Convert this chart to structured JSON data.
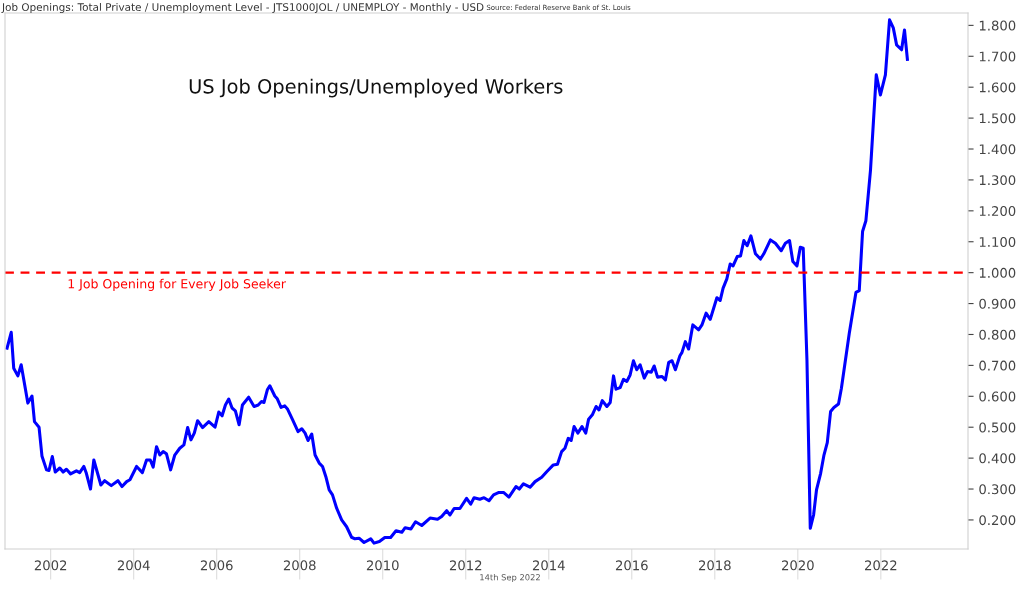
{
  "chart_data": {
    "type": "line",
    "title": "US Job Openings/Unemployed Workers",
    "subtitle": "Job Openings: Total Private / Unemployment Level - JTS1000JOL / UNEMPLOY - Monthly - USD",
    "annotations": [
      "Source: Federal Reserve Bank of St. Louis",
      "14th Sep 2022"
    ],
    "series": [
      {
        "color": "#0000ff",
        "x": [
          2000.95,
          2001.05,
          2001.11,
          2001.21,
          2001.29,
          2001.45,
          2001.55,
          2001.61,
          2001.72,
          2001.79,
          2001.9,
          2001.96,
          2002.04,
          2002.11,
          2002.22,
          2002.3,
          2002.38,
          2002.48,
          2002.62,
          2002.7,
          2002.8,
          2002.86,
          2002.96,
          2003.04,
          2003.21,
          2003.3,
          2003.46,
          2003.62,
          2003.72,
          2003.83,
          2003.91,
          2004.07,
          2004.21,
          2004.31,
          2004.4,
          2004.47,
          2004.55,
          2004.63,
          2004.71,
          2004.79,
          2004.89,
          2004.99,
          2005.11,
          2005.21,
          2005.3,
          2005.38,
          2005.46,
          2005.54,
          2005.66,
          2005.81,
          2005.96,
          2006.05,
          2006.13,
          2006.21,
          2006.29,
          2006.37,
          2006.45,
          2006.54,
          2006.62,
          2006.77,
          2006.9,
          2007.0,
          2007.08,
          2007.14,
          2007.22,
          2007.28,
          2007.4,
          2007.46,
          2007.55,
          2007.64,
          2007.71,
          2007.83,
          2007.96,
          2008.05,
          2008.13,
          2008.2,
          2008.29,
          2008.37,
          2008.47,
          2008.55,
          2008.63,
          2008.71,
          2008.79,
          2008.89,
          2009.01,
          2009.13,
          2009.25,
          2009.33,
          2009.43,
          2009.55,
          2009.71,
          2009.79,
          2009.92,
          2010.05,
          2010.19,
          2010.32,
          2010.46,
          2010.54,
          2010.68,
          2010.79,
          2010.94,
          2011.14,
          2011.32,
          2011.42,
          2011.54,
          2011.62,
          2011.72,
          2011.86,
          2012.02,
          2012.12,
          2012.2,
          2012.34,
          2012.44,
          2012.56,
          2012.67,
          2012.8,
          2012.91,
          2013.04,
          2013.21,
          2013.29,
          2013.39,
          2013.55,
          2013.67,
          2013.83,
          2013.95,
          2014.11,
          2014.21,
          2014.31,
          2014.39,
          2014.47,
          2014.54,
          2014.61,
          2014.7,
          2014.8,
          2014.89,
          2014.96,
          2015.05,
          2015.14,
          2015.21,
          2015.29,
          2015.4,
          2015.48,
          2015.56,
          2015.62,
          2015.72,
          2015.8,
          2015.88,
          2015.96,
          2016.04,
          2016.12,
          2016.2,
          2016.3,
          2016.38,
          2016.47,
          2016.54,
          2016.62,
          2016.73,
          2016.81,
          2016.89,
          2016.97,
          2017.05,
          2017.16,
          2017.21,
          2017.29,
          2017.37,
          2017.47,
          2017.61,
          2017.69,
          2017.79,
          2017.89,
          2018.05,
          2018.13,
          2018.2,
          2018.29,
          2018.37,
          2018.44,
          2018.54,
          2018.62,
          2018.7,
          2018.78,
          2018.87,
          2018.98,
          2019.1,
          2019.18,
          2019.34,
          2019.46,
          2019.6,
          2019.7,
          2019.8,
          2019.88,
          2019.98,
          2020.06,
          2020.13,
          2020.22,
          2020.3,
          2020.38,
          2020.45,
          2020.55,
          2020.63,
          2020.71,
          2020.79,
          2020.87,
          2020.98,
          2021.05,
          2021.24,
          2021.4,
          2021.48,
          2021.56,
          2021.64,
          2021.75,
          2021.89,
          2021.99,
          2022.11,
          2022.21,
          2022.3,
          2022.38,
          2022.5,
          2022.57,
          2022.64
        ],
        "values": [
          0.756,
          0.807,
          0.691,
          0.666,
          0.702,
          0.578,
          0.601,
          0.518,
          0.5,
          0.407,
          0.362,
          0.36,
          0.405,
          0.355,
          0.368,
          0.355,
          0.364,
          0.349,
          0.359,
          0.353,
          0.373,
          0.351,
          0.3,
          0.394,
          0.313,
          0.327,
          0.311,
          0.327,
          0.308,
          0.324,
          0.33,
          0.373,
          0.353,
          0.394,
          0.394,
          0.371,
          0.437,
          0.41,
          0.421,
          0.414,
          0.362,
          0.41,
          0.432,
          0.443,
          0.499,
          0.459,
          0.481,
          0.521,
          0.499,
          0.518,
          0.5,
          0.549,
          0.537,
          0.572,
          0.591,
          0.562,
          0.553,
          0.508,
          0.572,
          0.597,
          0.567,
          0.572,
          0.583,
          0.58,
          0.621,
          0.634,
          0.601,
          0.592,
          0.564,
          0.569,
          0.558,
          0.524,
          0.486,
          0.495,
          0.481,
          0.457,
          0.478,
          0.41,
          0.384,
          0.373,
          0.34,
          0.297,
          0.281,
          0.238,
          0.2,
          0.178,
          0.144,
          0.139,
          0.141,
          0.127,
          0.139,
          0.125,
          0.13,
          0.143,
          0.143,
          0.165,
          0.16,
          0.175,
          0.171,
          0.194,
          0.182,
          0.206,
          0.202,
          0.211,
          0.23,
          0.216,
          0.237,
          0.237,
          0.27,
          0.251,
          0.272,
          0.267,
          0.272,
          0.262,
          0.281,
          0.289,
          0.289,
          0.274,
          0.308,
          0.3,
          0.317,
          0.306,
          0.324,
          0.338,
          0.356,
          0.378,
          0.38,
          0.421,
          0.432,
          0.464,
          0.457,
          0.502,
          0.481,
          0.502,
          0.481,
          0.526,
          0.54,
          0.567,
          0.556,
          0.586,
          0.567,
          0.58,
          0.666,
          0.623,
          0.628,
          0.655,
          0.648,
          0.669,
          0.715,
          0.686,
          0.702,
          0.659,
          0.68,
          0.678,
          0.698,
          0.662,
          0.664,
          0.653,
          0.71,
          0.715,
          0.686,
          0.731,
          0.742,
          0.777,
          0.753,
          0.831,
          0.815,
          0.831,
          0.869,
          0.849,
          0.919,
          0.91,
          0.95,
          0.98,
          1.028,
          1.022,
          1.052,
          1.054,
          1.104,
          1.087,
          1.119,
          1.061,
          1.044,
          1.061,
          1.106,
          1.095,
          1.071,
          1.095,
          1.104,
          1.036,
          1.022,
          1.082,
          1.079,
          0.718,
          0.173,
          0.216,
          0.297,
          0.351,
          0.41,
          0.45,
          0.551,
          0.564,
          0.575,
          0.626,
          0.804,
          0.936,
          0.942,
          1.133,
          1.168,
          1.33,
          1.64,
          1.575,
          1.64,
          1.818,
          1.792,
          1.737,
          1.721,
          1.785,
          1.69
        ]
      }
    ],
    "xlim": [
      2000.9,
      2024.1
    ],
    "xticks": [
      2002,
      2004,
      2006,
      2008,
      2010,
      2012,
      2014,
      2016,
      2018,
      2020,
      2022
    ],
    "ylim": [
      0.106,
      1.84
    ],
    "yticks": [
      {
        "value": 0.2,
        "label": "0.200"
      },
      {
        "value": 0.3,
        "label": "0.300"
      },
      {
        "value": 0.4,
        "label": "0.400"
      },
      {
        "value": 0.5,
        "label": "0.500"
      },
      {
        "value": 0.6,
        "label": "0.600"
      },
      {
        "value": 0.7,
        "label": "0.700"
      },
      {
        "value": 0.8,
        "label": "0.800"
      },
      {
        "value": 0.9,
        "label": "0.900"
      },
      {
        "value": 1.0,
        "label": "1.000"
      },
      {
        "value": 1.1,
        "label": "1.100"
      },
      {
        "value": 1.2,
        "label": "1.200"
      },
      {
        "value": 1.3,
        "label": "1.300"
      },
      {
        "value": 1.4,
        "label": "1.400"
      },
      {
        "value": 1.5,
        "label": "1.500"
      },
      {
        "value": 1.6,
        "label": "1.600"
      },
      {
        "value": 1.7,
        "label": "1.700"
      },
      {
        "value": 1.8,
        "label": "1.800"
      }
    ],
    "ref_lines": [
      {
        "axis": "y",
        "value": 1.0,
        "label": "1 Job Opening for Every Job Seeker",
        "color": "#ff0000",
        "line_style": "dashed"
      }
    ],
    "grid": false,
    "legend": false,
    "marker": "none",
    "line_style": "solid"
  }
}
